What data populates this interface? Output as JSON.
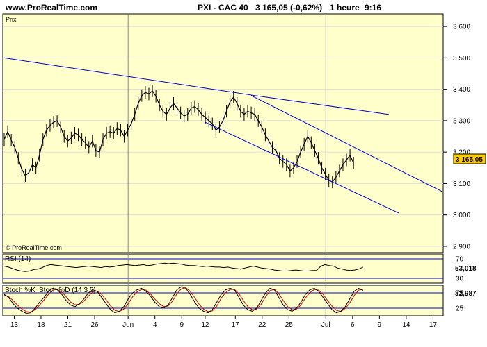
{
  "header": {
    "site": "www.ProRealTime.com",
    "instrument": "PXI - CAC 40",
    "price_change": "3 165,05 (-0,62%)",
    "timeframe": "1 heure",
    "time": "9:16"
  },
  "chart_data": [
    {
      "type": "line",
      "panel": "price",
      "label": "Prix",
      "watermark": "© ProRealTime.com",
      "ylim": [
        2880,
        3640
      ],
      "y_ticks": [
        "3 600",
        "3 500",
        "3 400",
        "3 300",
        "3 200",
        "3 100",
        "3 000",
        "2 900"
      ],
      "x_ticks": [
        "13",
        "18",
        "21",
        "26",
        "Jun",
        "4",
        "9",
        "12",
        "17",
        "22",
        "25",
        "Jul",
        "6",
        "9",
        "14",
        "17"
      ],
      "vertical_lines": [
        "Jun",
        "Jul"
      ],
      "last_price_label": "3 165,05",
      "series": [
        {
          "values": [
            3240,
            3265,
            3238,
            3215,
            3180,
            3145,
            3125,
            3135,
            3160,
            3150,
            3190,
            3240,
            3270,
            3285,
            3295,
            3300,
            3280,
            3250,
            3235,
            3245,
            3260,
            3255,
            3240,
            3230,
            3215,
            3235,
            3205,
            3200,
            3240,
            3260,
            3265,
            3260,
            3275,
            3270,
            3250,
            3270,
            3290,
            3320,
            3355,
            3380,
            3390,
            3385,
            3395,
            3378,
            3350,
            3330,
            3320,
            3340,
            3355,
            3340,
            3325,
            3315,
            3320,
            3340,
            3345,
            3335,
            3320,
            3310,
            3300,
            3290,
            3270,
            3280,
            3300,
            3330,
            3360,
            3375,
            3355,
            3330,
            3320,
            3330,
            3325,
            3320,
            3300,
            3280,
            3255,
            3235,
            3215,
            3205,
            3180,
            3170,
            3160,
            3140,
            3150,
            3170,
            3200,
            3225,
            3250,
            3230,
            3205,
            3180,
            3150,
            3130,
            3110,
            3105,
            3120,
            3140,
            3160,
            3175,
            3190,
            3165
          ]
        }
      ],
      "trendlines": [
        {
          "x": [
            0,
            71
          ],
          "y": [
            3500,
            3380
          ]
        },
        {
          "x": [
            71,
            109
          ],
          "y": [
            3380,
            3320
          ]
        },
        {
          "x": [
            70,
            124
          ],
          "y": [
            3380,
            3075
          ]
        },
        {
          "x": [
            57,
            112
          ],
          "y": [
            3295,
            3005
          ]
        }
      ]
    },
    {
      "type": "line",
      "panel": "rsi",
      "label": "RSI (14)",
      "ylim": [
        20,
        80
      ],
      "y_ticks": [
        "70",
        "30"
      ],
      "last_value_label": "53,018",
      "series": [
        {
          "values": [
            55,
            53,
            50,
            47,
            45,
            44,
            45,
            48,
            49,
            52,
            56,
            58,
            57,
            56,
            55,
            54,
            53,
            52,
            53,
            54,
            55,
            54,
            53,
            52,
            54,
            53,
            54,
            56,
            57,
            58,
            57,
            56,
            57,
            58,
            56,
            57,
            59,
            60,
            61,
            60,
            61,
            60,
            59,
            57,
            56,
            56,
            55,
            54,
            55,
            54,
            53,
            53,
            52,
            53,
            51,
            50,
            49,
            51,
            53,
            55,
            53,
            51,
            50,
            49,
            47,
            46,
            45,
            45,
            46,
            47,
            46,
            45,
            45,
            46,
            46,
            55,
            58,
            56,
            55,
            51,
            49,
            47,
            46,
            47,
            49,
            53
          ]
        }
      ]
    },
    {
      "type": "line",
      "panel": "stochastic",
      "label_k": "Stoch %K",
      "label_d": "Stoch %D (14 3 5)",
      "ylim": [
        0,
        100
      ],
      "y_ticks": [
        "75",
        "25"
      ],
      "last_value_label": "82,987",
      "series": [
        {
          "name": "Stoch %K",
          "values": [
            70,
            60,
            40,
            25,
            15,
            8,
            10,
            25,
            45,
            60,
            80,
            90,
            85,
            70,
            50,
            35,
            30,
            40,
            55,
            75,
            85,
            80,
            60,
            40,
            20,
            10,
            15,
            30,
            55,
            75,
            85,
            90,
            80,
            65,
            45,
            30,
            25,
            35,
            60,
            85,
            95,
            90,
            70,
            45,
            25,
            15,
            10,
            20,
            45,
            70,
            85,
            90,
            85,
            60,
            35,
            20,
            15,
            25,
            50,
            75,
            90,
            85,
            60,
            35,
            20,
            15,
            25,
            45,
            70,
            85,
            90,
            80,
            60,
            40,
            20,
            10,
            15,
            30,
            55,
            80,
            90,
            83
          ]
        },
        {
          "name": "Stoch %D (14 3 5)",
          "values": [
            68,
            63,
            50,
            35,
            22,
            14,
            12,
            20,
            35,
            52,
            70,
            84,
            86,
            78,
            62,
            45,
            36,
            38,
            48,
            64,
            78,
            81,
            70,
            52,
            33,
            18,
            14,
            22,
            40,
            62,
            78,
            86,
            84,
            72,
            55,
            40,
            30,
            32,
            48,
            72,
            88,
            92,
            80,
            60,
            38,
            22,
            14,
            16,
            32,
            58,
            76,
            86,
            86,
            72,
            50,
            30,
            20,
            22,
            38,
            62,
            82,
            87,
            72,
            50,
            30,
            20,
            22,
            36,
            58,
            76,
            86,
            84,
            70,
            50,
            32,
            18,
            14,
            24,
            42,
            66,
            84,
            86
          ]
        }
      ]
    }
  ],
  "colors": {
    "plot_background": "#ffffcc",
    "price_line": "#000000",
    "trendline": "#0000cc",
    "stoch_d": "#cc0000",
    "level_line": "#0000cc",
    "last_price_box": "#ffcc00",
    "grid": "#dddddd"
  }
}
